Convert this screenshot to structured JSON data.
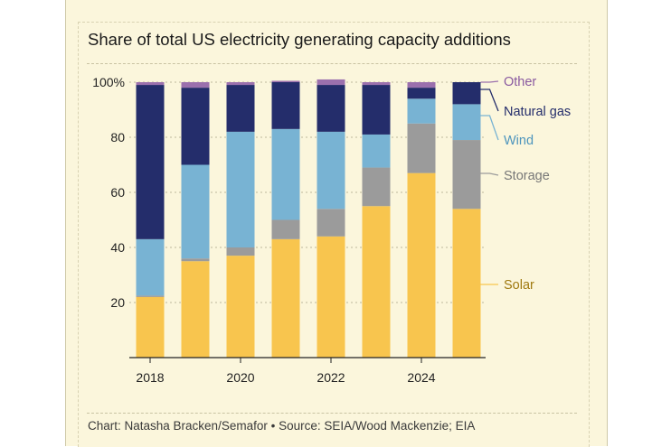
{
  "title": "Share of total US electricity generating capacity additions",
  "footer": "Chart: Natasha Bracken/Semafor • Source: SEIA/Wood Mackenzie; EIA",
  "colors": {
    "Solar": "#f8c54e",
    "Storage": "#9b9b9b",
    "Wind": "#78b3d3",
    "Natural gas": "#242d6b",
    "Other": "#9b70ad",
    "Solar_label": "#a07a10",
    "Storage_label": "#777777",
    "Wind_label": "#4d95bd",
    "Natural gas_label": "#242d6b",
    "Other_label": "#8a5aa0"
  },
  "chart_data": {
    "type": "bar",
    "stacked": true,
    "title": "Share of total US electricity generating capacity additions",
    "categories": [
      "2018",
      "2019",
      "2020",
      "2021",
      "2022",
      "2023",
      "2024",
      "2025"
    ],
    "x_tick_labels": [
      "2018",
      "2020",
      "2022",
      "2024"
    ],
    "y_tick_labels": [
      "20",
      "40",
      "60",
      "80",
      "100%"
    ],
    "y_ticks": [
      20,
      40,
      60,
      80,
      100
    ],
    "ylim": [
      0,
      100
    ],
    "grid": true,
    "legend_placement": "right",
    "series": [
      {
        "name": "Solar",
        "values": [
          22,
          35,
          37,
          43,
          44,
          55,
          67,
          54
        ]
      },
      {
        "name": "Storage",
        "values": [
          0.5,
          1,
          3,
          7,
          10,
          14,
          18,
          25
        ]
      },
      {
        "name": "Wind",
        "values": [
          20.5,
          34,
          42,
          33,
          28,
          12,
          9,
          13
        ]
      },
      {
        "name": "Natural gas",
        "values": [
          56,
          28,
          17,
          17,
          17,
          18,
          4,
          8
        ]
      },
      {
        "name": "Other",
        "values": [
          1,
          2,
          1,
          0.5,
          2,
          1,
          2,
          0
        ]
      }
    ]
  }
}
